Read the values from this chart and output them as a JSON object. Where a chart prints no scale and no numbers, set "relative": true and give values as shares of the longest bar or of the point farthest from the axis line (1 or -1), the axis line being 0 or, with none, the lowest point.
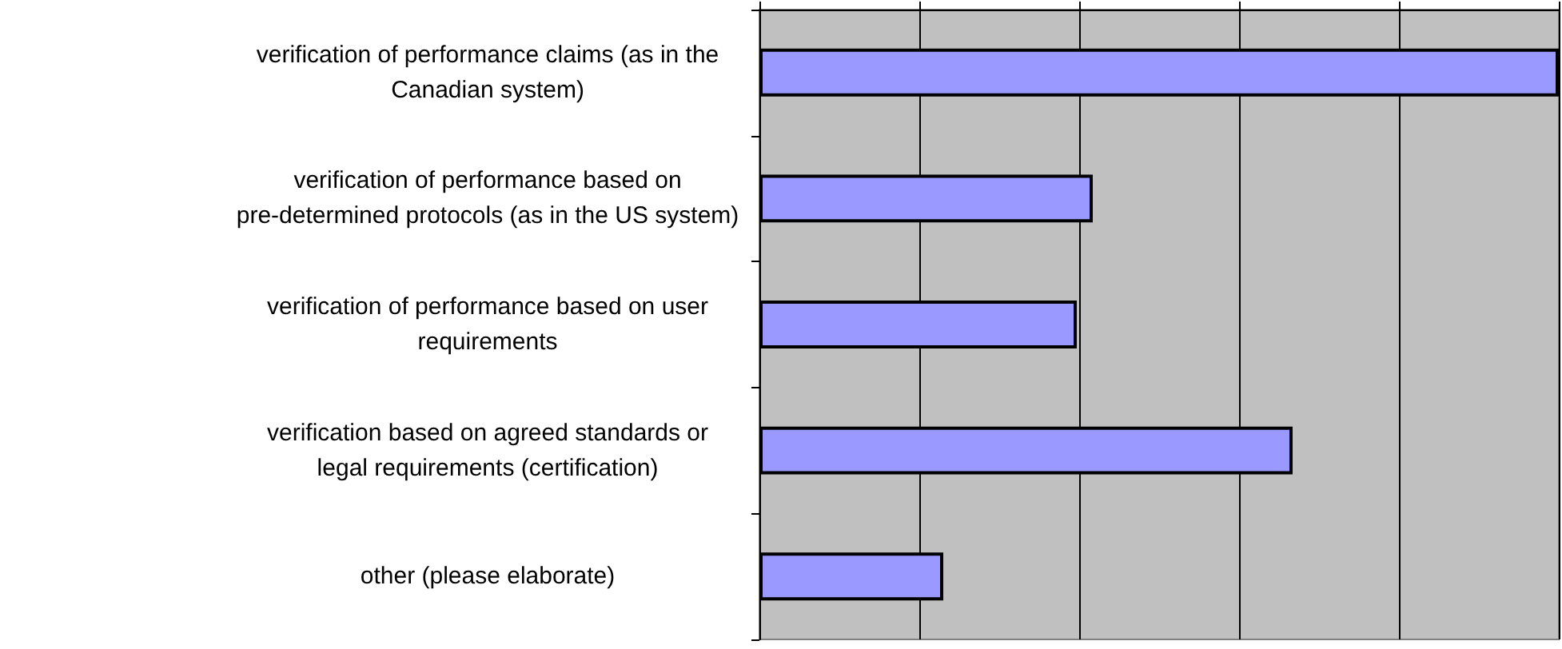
{
  "chart_data": {
    "type": "bar",
    "orientation": "horizontal",
    "relative": true,
    "grid": "x",
    "categories": [
      "verification of performance claims (as in the Canadian system)",
      "verification of performance based on pre-determined protocols (as in the US system)",
      "verification of performance based on user requirements",
      "verification based on agreed standards or legal requirements (certification)",
      "other (please elaborate)"
    ],
    "values": [
      1,
      0.417,
      0.397,
      0.667,
      0.23
    ],
    "color": "#9999ff"
  }
}
